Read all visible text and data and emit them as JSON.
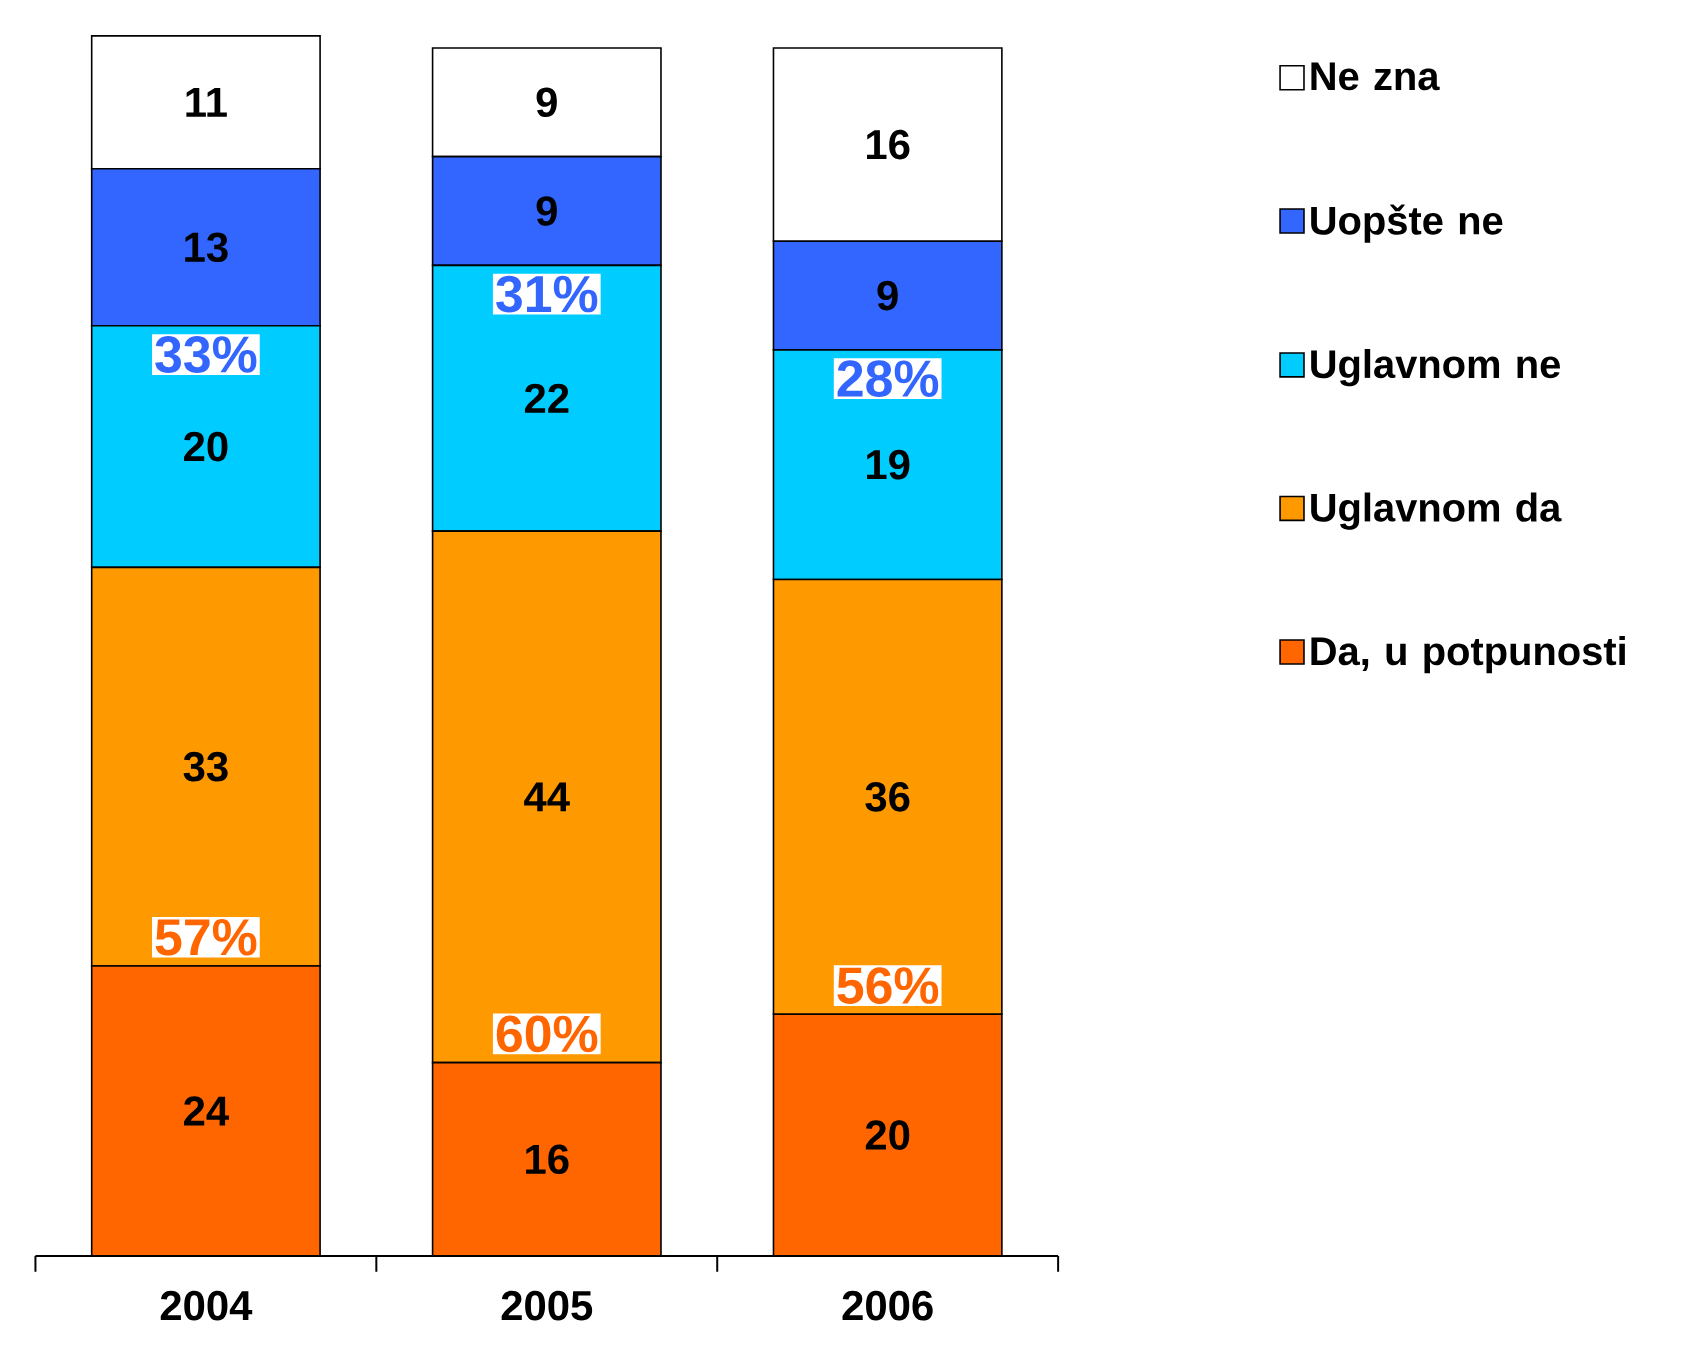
{
  "chart_data": {
    "type": "bar",
    "stacked": true,
    "data_labels": true,
    "legend": "right",
    "categories": [
      "2004",
      "2005",
      "2006"
    ],
    "series": [
      {
        "name": "Da, u potpunosti",
        "color": "#ff6600",
        "values": [
          24,
          16,
          20
        ]
      },
      {
        "name": "Uglavnom da",
        "color": "#ff9900",
        "values": [
          33,
          44,
          36
        ]
      },
      {
        "name": "Uglavnom ne",
        "color": "#00ccff",
        "values": [
          20,
          22,
          19
        ]
      },
      {
        "name": "Uopšte ne",
        "color": "#3366ff",
        "values": [
          13,
          9,
          9
        ]
      },
      {
        "name": "Ne zna",
        "color": "#ffffff",
        "values": [
          11,
          9,
          16
        ]
      }
    ],
    "annotations": [
      "57%",
      "60%",
      "56%",
      "33%",
      "31%",
      "28%"
    ]
  }
}
